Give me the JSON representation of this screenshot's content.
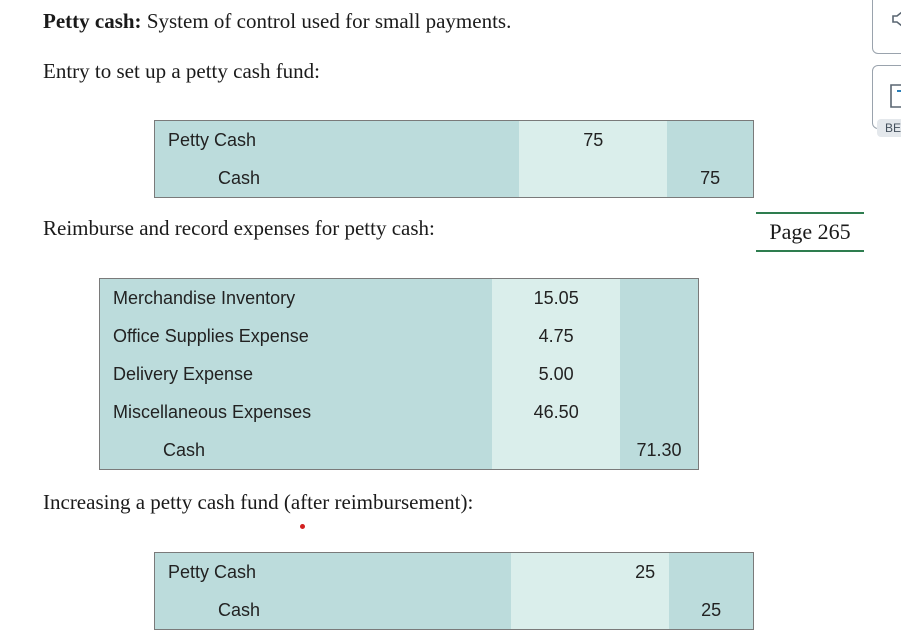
{
  "intro": {
    "term": "Petty cash:",
    "definition": "System of control used for small payments."
  },
  "sections": [
    {
      "heading": "Entry to set up a petty cash fund:",
      "entries": [
        {
          "account": "Petty Cash",
          "debit": "75",
          "credit": ""
        },
        {
          "account": "Cash",
          "debit": "",
          "credit": "75"
        }
      ]
    },
    {
      "heading": "Reimburse and record expenses for petty cash:",
      "entries": [
        {
          "account": "Merchandise Inventory",
          "debit": "15.05",
          "credit": ""
        },
        {
          "account": "Office Supplies Expense",
          "debit": "4.75",
          "credit": ""
        },
        {
          "account": "Delivery Expense",
          "debit": "5.00",
          "credit": ""
        },
        {
          "account": "Miscellaneous Expenses",
          "debit": "46.50",
          "credit": ""
        },
        {
          "account": "Cash",
          "debit": "",
          "credit": "71.30"
        }
      ]
    },
    {
      "heading": "Increasing a petty cash fund (after reimbursement):",
      "entries": [
        {
          "account": "Petty Cash",
          "debit": "25",
          "credit": ""
        },
        {
          "account": "Cash",
          "debit": "",
          "credit": "25"
        }
      ]
    }
  ],
  "page_marker": "Page 265",
  "sidebar": {
    "icon_top": "speaker-icon",
    "icon_bottom": "flashcard-icon",
    "label": "BE"
  }
}
